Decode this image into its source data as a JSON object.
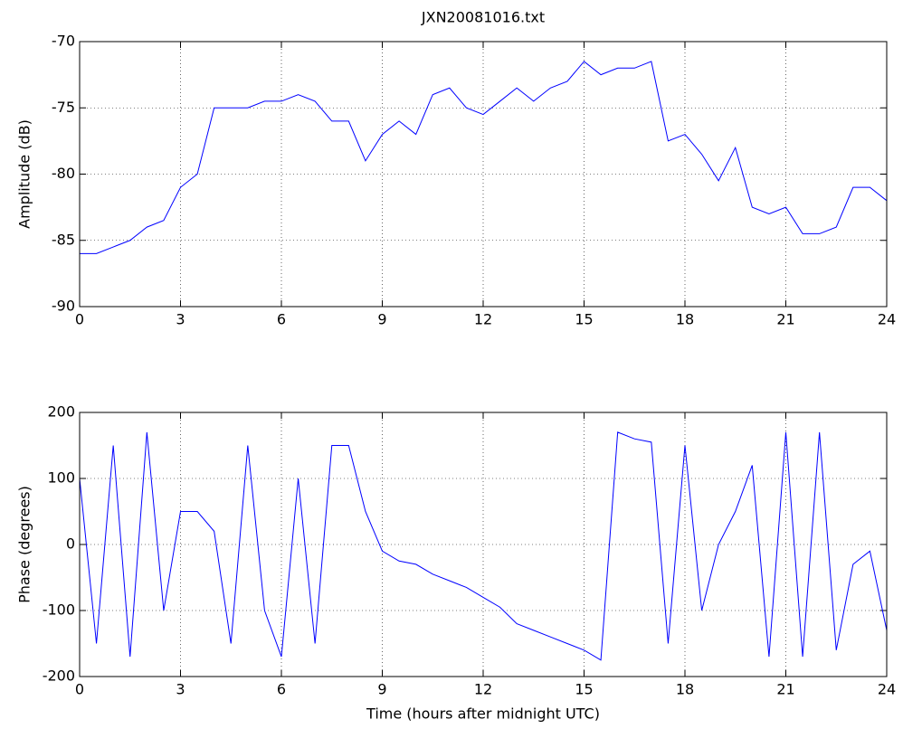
{
  "chart_data": [
    {
      "type": "line",
      "title": "JXN20081016.txt",
      "ylabel": "Amplitude (dB)",
      "x": [
        0,
        0.5,
        1,
        1.5,
        2,
        2.5,
        3,
        3.5,
        4,
        4.5,
        5,
        5.5,
        6,
        6.5,
        7,
        7.5,
        8,
        8.5,
        9,
        9.5,
        10,
        10.5,
        11,
        11.5,
        12,
        12.5,
        13,
        13.5,
        14,
        14.5,
        15,
        15.5,
        16,
        16.5,
        17,
        17.5,
        18,
        18.5,
        19,
        19.5,
        20,
        20.5,
        21,
        21.5,
        22,
        22.5,
        23,
        23.5,
        24
      ],
      "series": [
        {
          "color": "#0000ff",
          "values": [
            -86,
            -86,
            -85.5,
            -85,
            -84,
            -83.5,
            -81,
            -80,
            -75,
            -75,
            -75,
            -74.5,
            -74.5,
            -74,
            -74.5,
            -76,
            -76,
            -79,
            -77,
            -76,
            -77,
            -74,
            -73.5,
            -75,
            -75.5,
            -74.5,
            -73.5,
            -74.5,
            -73.5,
            -73,
            -71.5,
            -72.5,
            -72,
            -72,
            -71.5,
            -77.5,
            -77,
            -78.5,
            -80.5,
            -78,
            -82.5,
            -83,
            -82.5,
            -84.5,
            -84.5,
            -84,
            -81,
            -81,
            -82
          ]
        }
      ],
      "xlim": [
        0,
        24
      ],
      "ylim": [
        -90,
        -70
      ],
      "xticks": [
        0,
        3,
        6,
        9,
        12,
        15,
        18,
        21,
        24
      ],
      "yticks": [
        -90,
        -85,
        -80,
        -75,
        -70
      ],
      "grid": true
    },
    {
      "type": "line",
      "xlabel": "Time (hours after midnight UTC)",
      "ylabel": "Phase (degrees)",
      "x": [
        0,
        0.5,
        1,
        1.5,
        2,
        2.5,
        3,
        3.5,
        4,
        4.5,
        5,
        5.5,
        6,
        6.5,
        7,
        7.5,
        8,
        8.5,
        9,
        9.5,
        10,
        10.5,
        11,
        11.5,
        12,
        12.5,
        13,
        13.5,
        14,
        14.5,
        15,
        15.5,
        16,
        16.5,
        17,
        17.5,
        18,
        18.5,
        19,
        19.5,
        20,
        20.5,
        21,
        21.5,
        22,
        22.5,
        23,
        23.5,
        24
      ],
      "series": [
        {
          "color": "#0000ff",
          "values": [
            100,
            -150,
            150,
            -170,
            170,
            -100,
            50,
            50,
            20,
            -150,
            150,
            -100,
            -170,
            100,
            -150,
            150,
            150,
            50,
            -10,
            -25,
            -30,
            -45,
            -55,
            -65,
            -80,
            -95,
            -120,
            -130,
            -140,
            -150,
            -160,
            -175,
            170,
            160,
            155,
            -150,
            150,
            -100,
            0,
            50,
            120,
            -170,
            170,
            -170,
            170,
            -160,
            -30,
            -10,
            -130
          ]
        }
      ],
      "xlim": [
        0,
        24
      ],
      "ylim": [
        -200,
        200
      ],
      "xticks": [
        0,
        3,
        6,
        9,
        12,
        15,
        18,
        21,
        24
      ],
      "yticks": [
        -200,
        -100,
        0,
        100,
        200
      ],
      "grid": true
    }
  ]
}
